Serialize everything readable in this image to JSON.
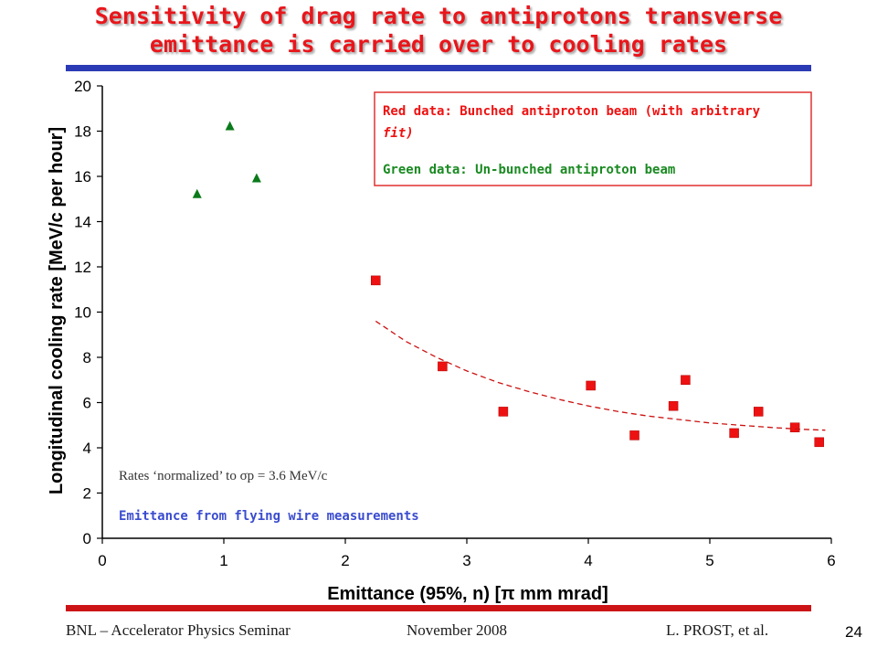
{
  "slide": {
    "title_line1": "Sensitivity of drag rate to antiprotons transverse",
    "title_line2": "emittance is carried over to cooling rates",
    "title_color": "#e8161b",
    "rule_top_color": "#2b3bb5",
    "rule_bottom_color": "#cc1417",
    "footer_left": "BNL – Accelerator Physics Seminar",
    "footer_center": "November 2008",
    "footer_right": "L. PROST, et al.",
    "page_number": "24"
  },
  "chart_data": {
    "type": "scatter",
    "xlabel": "Emittance (95%, n) [π mm mrad]",
    "ylabel": "Longitudinal cooling rate [MeV/c per hour]",
    "xlim": [
      0,
      6
    ],
    "ylim": [
      0,
      20
    ],
    "x_ticks": [
      "0",
      "1",
      "2",
      "3",
      "4",
      "5",
      "6"
    ],
    "y_ticks": [
      "0",
      "2",
      "4",
      "6",
      "8",
      "10",
      "12",
      "14",
      "16",
      "18",
      "20"
    ],
    "grid": false,
    "legend": {
      "position": "top-right",
      "red_text": "Red data",
      "red_desc": ": Bunched antiproton beam ",
      "red_note": "(with arbitrary fit)",
      "green_text": "Green data",
      "green_desc": ": Un-bunched antiproton beam"
    },
    "annotations": {
      "rates_text": "Rates ‘normalized’ to σp = 3.6 MeV/c",
      "emittance_note": "Emittance from flying wire measurements"
    },
    "series": [
      {
        "name": "Red data",
        "marker": "square",
        "color": "#ee1111",
        "x": [
          2.25,
          2.8,
          3.3,
          4.02,
          4.38,
          4.7,
          4.8,
          5.2,
          5.4,
          5.7,
          5.9
        ],
        "y": [
          11.4,
          7.6,
          5.6,
          6.75,
          4.55,
          5.85,
          7.0,
          4.65,
          5.6,
          4.9,
          4.25
        ]
      },
      {
        "name": "Green data",
        "marker": "triangle",
        "color": "#0a7a1a",
        "x": [
          0.78,
          1.05,
          1.27
        ],
        "y": [
          15.2,
          18.2,
          15.9
        ]
      },
      {
        "name": "arbitrary fit",
        "type": "line",
        "style": "dashed",
        "color": "#cc1111",
        "x": [
          2.25,
          2.5,
          2.75,
          3.0,
          3.25,
          3.5,
          3.75,
          4.0,
          4.25,
          4.5,
          4.75,
          5.0,
          5.25,
          5.5,
          5.75,
          5.95
        ],
        "y": [
          9.6,
          8.7,
          8.0,
          7.4,
          6.9,
          6.5,
          6.15,
          5.85,
          5.6,
          5.4,
          5.25,
          5.1,
          5.0,
          4.9,
          4.82,
          4.78
        ]
      }
    ]
  }
}
